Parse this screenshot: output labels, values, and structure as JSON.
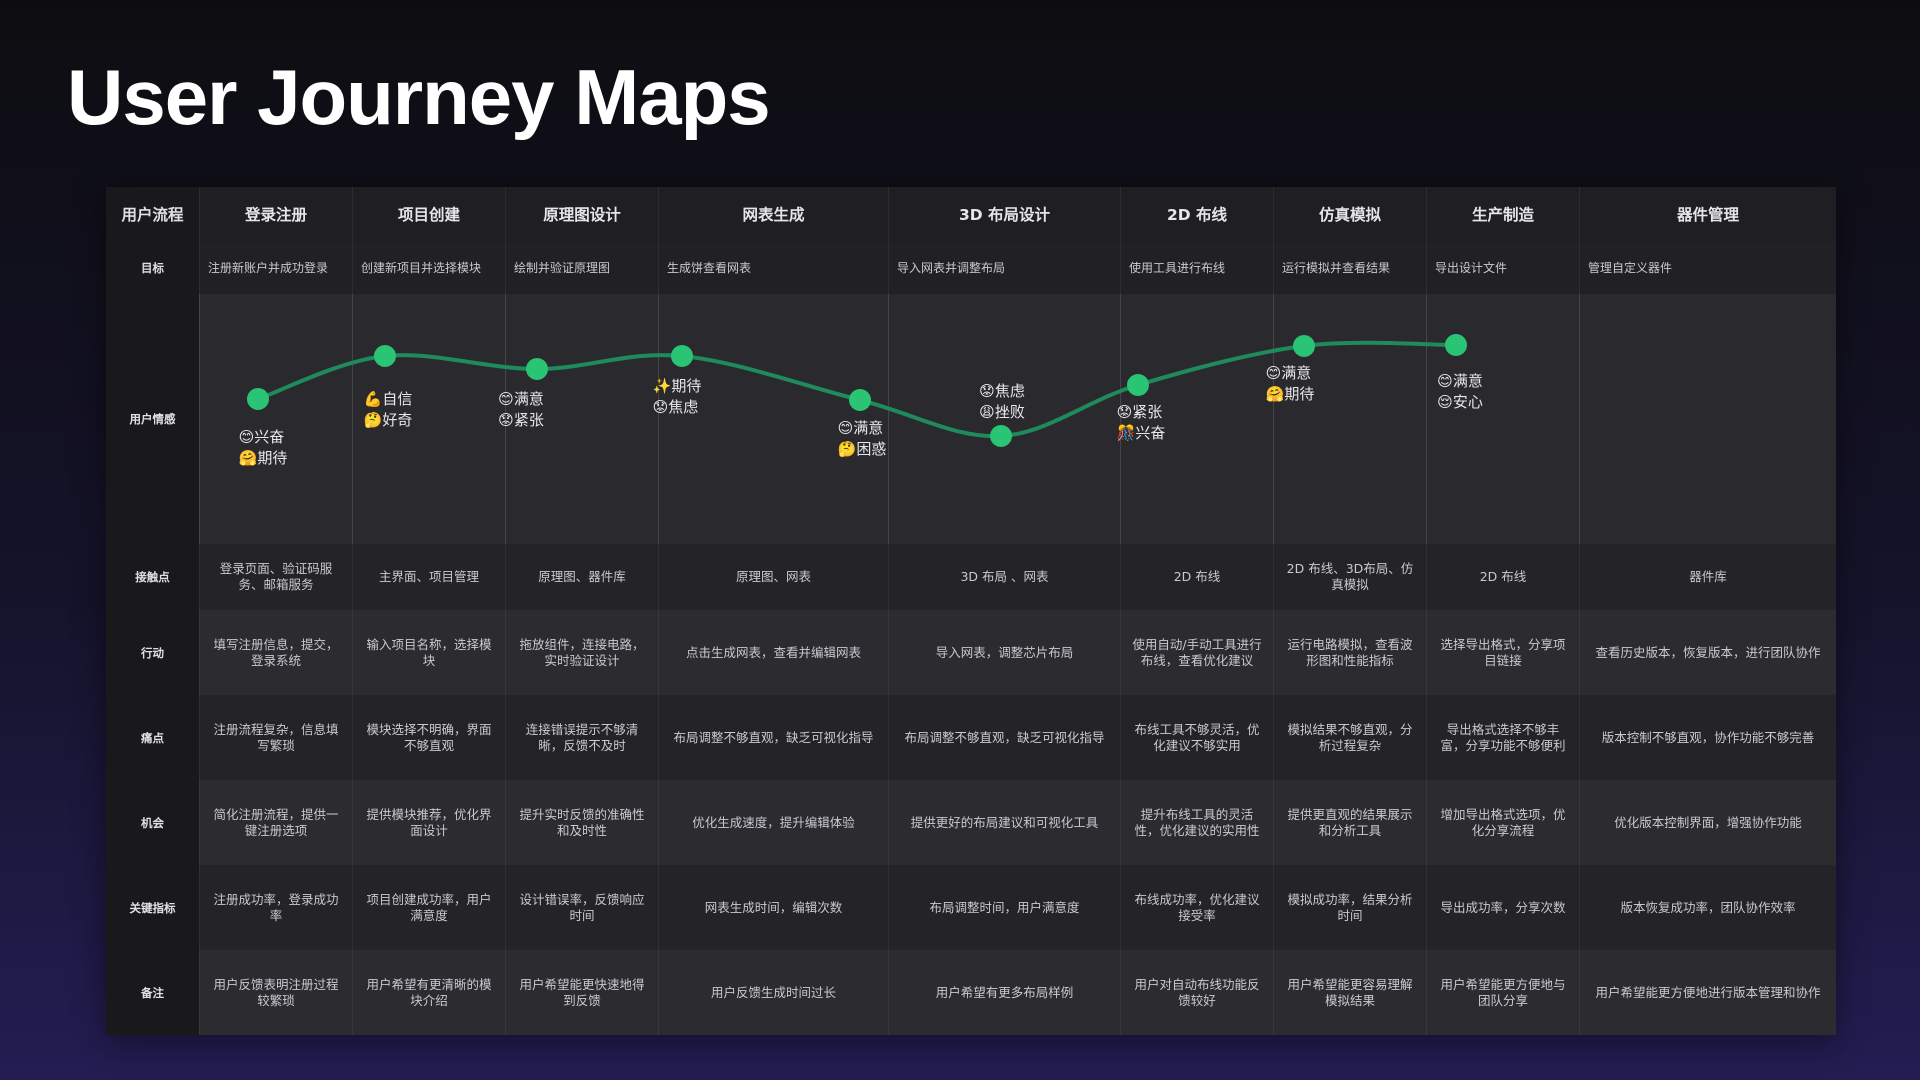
{
  "title": "User Journey Maps",
  "colors": {
    "curve": "#1f8a5b",
    "point": "#29c474"
  },
  "row_labels": {
    "flow": "用户流程",
    "goal": "目标",
    "emotion": "用户情感",
    "touchpoint": "接触点",
    "action": "行动",
    "pain": "痛点",
    "opportunity": "机会",
    "metric": "关键指标",
    "note": "备注"
  },
  "stages": [
    {
      "name": "登录注册",
      "goal": "注册新账户并成功登录",
      "emotions": [
        "😊兴奋",
        "🤗期待"
      ],
      "touchpoint": "登录页面、验证码服务、邮箱服务",
      "action": "填写注册信息，提交，登录系统",
      "pain": "注册流程复杂，信息填写繁琐",
      "opportunity": "简化注册流程，提供一键注册选项",
      "metric": "注册成功率，登录成功率",
      "note": "用户反馈表明注册过程较繁琐"
    },
    {
      "name": "项目创建",
      "goal": "创建新项目并选择模块",
      "emotions": [
        "💪自信",
        "🤔好奇"
      ],
      "touchpoint": "主界面、项目管理",
      "action": "输入项目名称，选择模块",
      "pain": "模块选择不明确，界面不够直观",
      "opportunity": "提供模块推荐，优化界面设计",
      "metric": "项目创建成功率，用户满意度",
      "note": "用户希望有更清晰的模块介绍"
    },
    {
      "name": "原理图设计",
      "goal": "绘制并验证原理图",
      "emotions": [
        "😊满意",
        "😟紧张"
      ],
      "touchpoint": "原理图、器件库",
      "action": "拖放组件，连接电路，实时验证设计",
      "pain": "连接错误提示不够清晰，反馈不及时",
      "opportunity": "提升实时反馈的准确性和及时性",
      "metric": "设计错误率，反馈响应时间",
      "note": "用户希望能更快速地得到反馈"
    },
    {
      "name": "网表生成",
      "goal": "生成饼查看网表",
      "emotions": [
        "✨期待",
        "😟焦虑"
      ],
      "touchpoint": "原理图、网表",
      "action": "点击生成网表，查看并编辑网表",
      "pain": "布局调整不够直观，缺乏可视化指导",
      "opportunity": "优化生成速度，提升编辑体验",
      "metric": "网表生成时间，编辑次数",
      "note": "用户反馈生成时间过长"
    },
    {
      "name": "3D 布局设计",
      "goal": "导入网表并调整布局",
      "emotions": [
        "😊满意",
        "🤔困惑"
      ],
      "touchpoint": "3D 布局 、网表",
      "action": "导入网表，调整芯片布局",
      "pain": "布局调整不够直观，缺乏可视化指导",
      "opportunity": "提供更好的布局建议和可视化工具",
      "metric": "布局调整时间，用户满意度",
      "note": "用户希望有更多布局样例"
    },
    {
      "name": "2D 布线",
      "goal": "使用工具进行布线",
      "emotions": [
        "😟焦虑",
        "😩挫败"
      ],
      "touchpoint": "2D 布线",
      "action": "使用自动/手动工具进行布线，查看优化建议",
      "pain": "布线工具不够灵活，优化建议不够实用",
      "opportunity": "提升布线工具的灵活性，优化建议的实用性",
      "metric": "布线成功率，优化建议接受率",
      "note": "用户对自动布线功能反馈较好"
    },
    {
      "name": "仿真模拟",
      "goal": "运行模拟并查看结果",
      "emotions": [
        "😟紧张",
        "🎊兴奋"
      ],
      "touchpoint": "2D 布线、3D布局、仿真模拟",
      "action": "运行电路模拟，查看波形图和性能指标",
      "pain": "模拟结果不够直观，分析过程复杂",
      "opportunity": "提供更直观的结果展示和分析工具",
      "metric": "模拟成功率，结果分析时间",
      "note": "用户希望能更容易理解模拟结果"
    },
    {
      "name": "生产制造",
      "goal": "导出设计文件",
      "emotions": [
        "😊满意",
        "🤗期待"
      ],
      "touchpoint": "2D 布线",
      "action": "选择导出格式，分享项目链接",
      "pain": "导出格式选择不够丰富，分享功能不够便利",
      "opportunity": "增加导出格式选项，优化分享流程",
      "metric": "导出成功率，分享次数",
      "note": "用户希望能更方便地与团队分享"
    },
    {
      "name": "器件管理",
      "goal": "管理自定义器件",
      "emotions": [
        "😊满意",
        "😌安心"
      ],
      "touchpoint": "器件库",
      "action": "查看历史版本，恢复版本，进行团队协作",
      "pain": "版本控制不够直观，协作功能不够完善",
      "opportunity": "优化版本控制界面，增强协作功能",
      "metric": "版本恢复成功率，团队协作效率",
      "note": "用户希望能更方便地进行版本管理和协作"
    }
  ]
}
